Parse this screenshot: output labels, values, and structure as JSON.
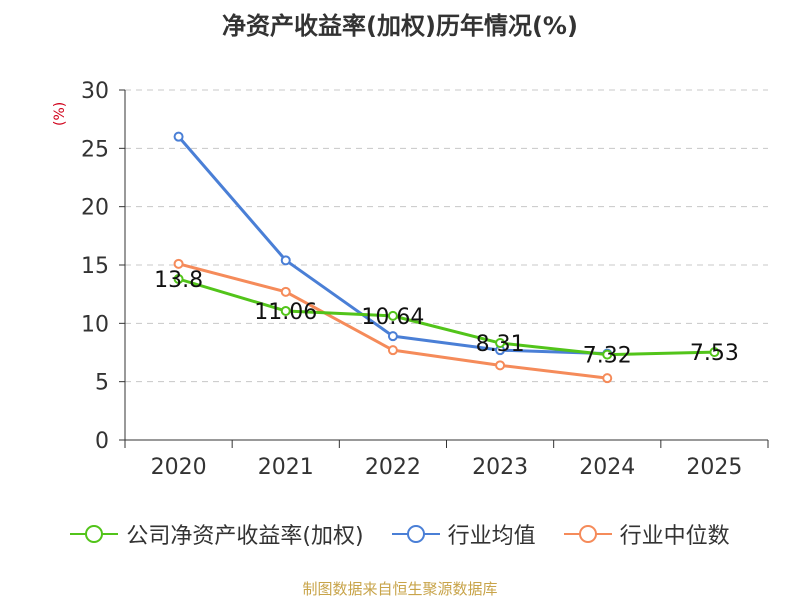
{
  "title": "净资产收益率(加权)历年情况(%)",
  "source": "制图数据来自恒生聚源数据库",
  "chart_data": {
    "type": "line",
    "title": "净资产收益率(加权)历年情况(%)",
    "ylabel": "(%)",
    "xlabel": "",
    "ylim": [
      0,
      30
    ],
    "yticks": [
      0,
      5,
      10,
      15,
      20,
      25,
      30
    ],
    "grid": true,
    "legend_position": "bottom",
    "categories": [
      "2020",
      "2021",
      "2022",
      "2023",
      "2024",
      "2025"
    ],
    "series": [
      {
        "name": "公司净资产收益率(加权)",
        "color": "#52c41a",
        "values": [
          13.8,
          11.06,
          10.64,
          8.31,
          7.32,
          7.53
        ],
        "labels": [
          "13.8",
          "11.06",
          "10.64",
          "8.31",
          "7.32",
          "7.53"
        ]
      },
      {
        "name": "行业均值",
        "color": "#4a7fd6",
        "values": [
          26.0,
          15.4,
          8.9,
          7.7,
          7.4,
          null
        ]
      },
      {
        "name": "行业中位数",
        "color": "#f58b5a",
        "values": [
          15.1,
          12.7,
          7.7,
          6.4,
          5.3,
          null
        ]
      }
    ]
  }
}
